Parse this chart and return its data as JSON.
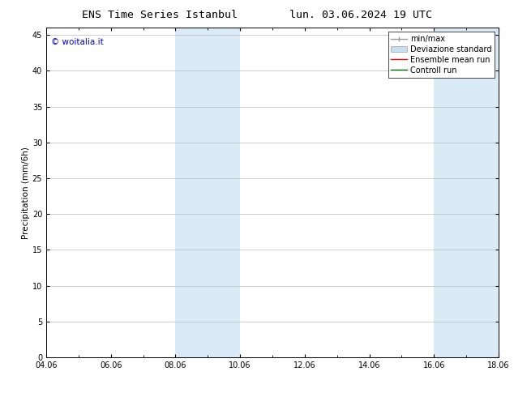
{
  "title_left": "ENS Time Series Istanbul",
  "title_right": "lun. 03.06.2024 19 UTC",
  "ylabel": "Precipitation (mm/6h)",
  "watermark": "© woitalia.it",
  "watermark_color": "#0000dd",
  "xlim": [
    0,
    14
  ],
  "ylim": [
    0,
    46
  ],
  "yticks": [
    0,
    5,
    10,
    15,
    20,
    25,
    30,
    35,
    40,
    45
  ],
  "xtick_labels": [
    "04.06",
    "06.06",
    "08.06",
    "10.06",
    "12.06",
    "14.06",
    "16.06",
    "18.06"
  ],
  "xtick_positions": [
    0,
    2,
    4,
    6,
    8,
    10,
    12,
    14
  ],
  "shaded_bands": [
    {
      "xmin": 4,
      "xmax": 6
    },
    {
      "xmin": 12,
      "xmax": 14
    }
  ],
  "shade_color": "#daeaf7",
  "shade_alpha": 1.0,
  "legend_items": [
    {
      "label": "min/max",
      "color": "#999999",
      "lw": 1.0,
      "style": "minmax"
    },
    {
      "label": "Deviazione standard",
      "color": "#c8dff0",
      "lw": 8,
      "style": "bar"
    },
    {
      "label": "Ensemble mean run",
      "color": "#ff0000",
      "lw": 1.0,
      "style": "line"
    },
    {
      "label": "Controll run",
      "color": "#006600",
      "lw": 1.0,
      "style": "line"
    }
  ],
  "background_color": "#ffffff",
  "grid_color": "#bbbbbb",
  "title_fontsize": 9.5,
  "label_fontsize": 7.5,
  "tick_fontsize": 7,
  "legend_fontsize": 7,
  "watermark_fontsize": 7.5
}
